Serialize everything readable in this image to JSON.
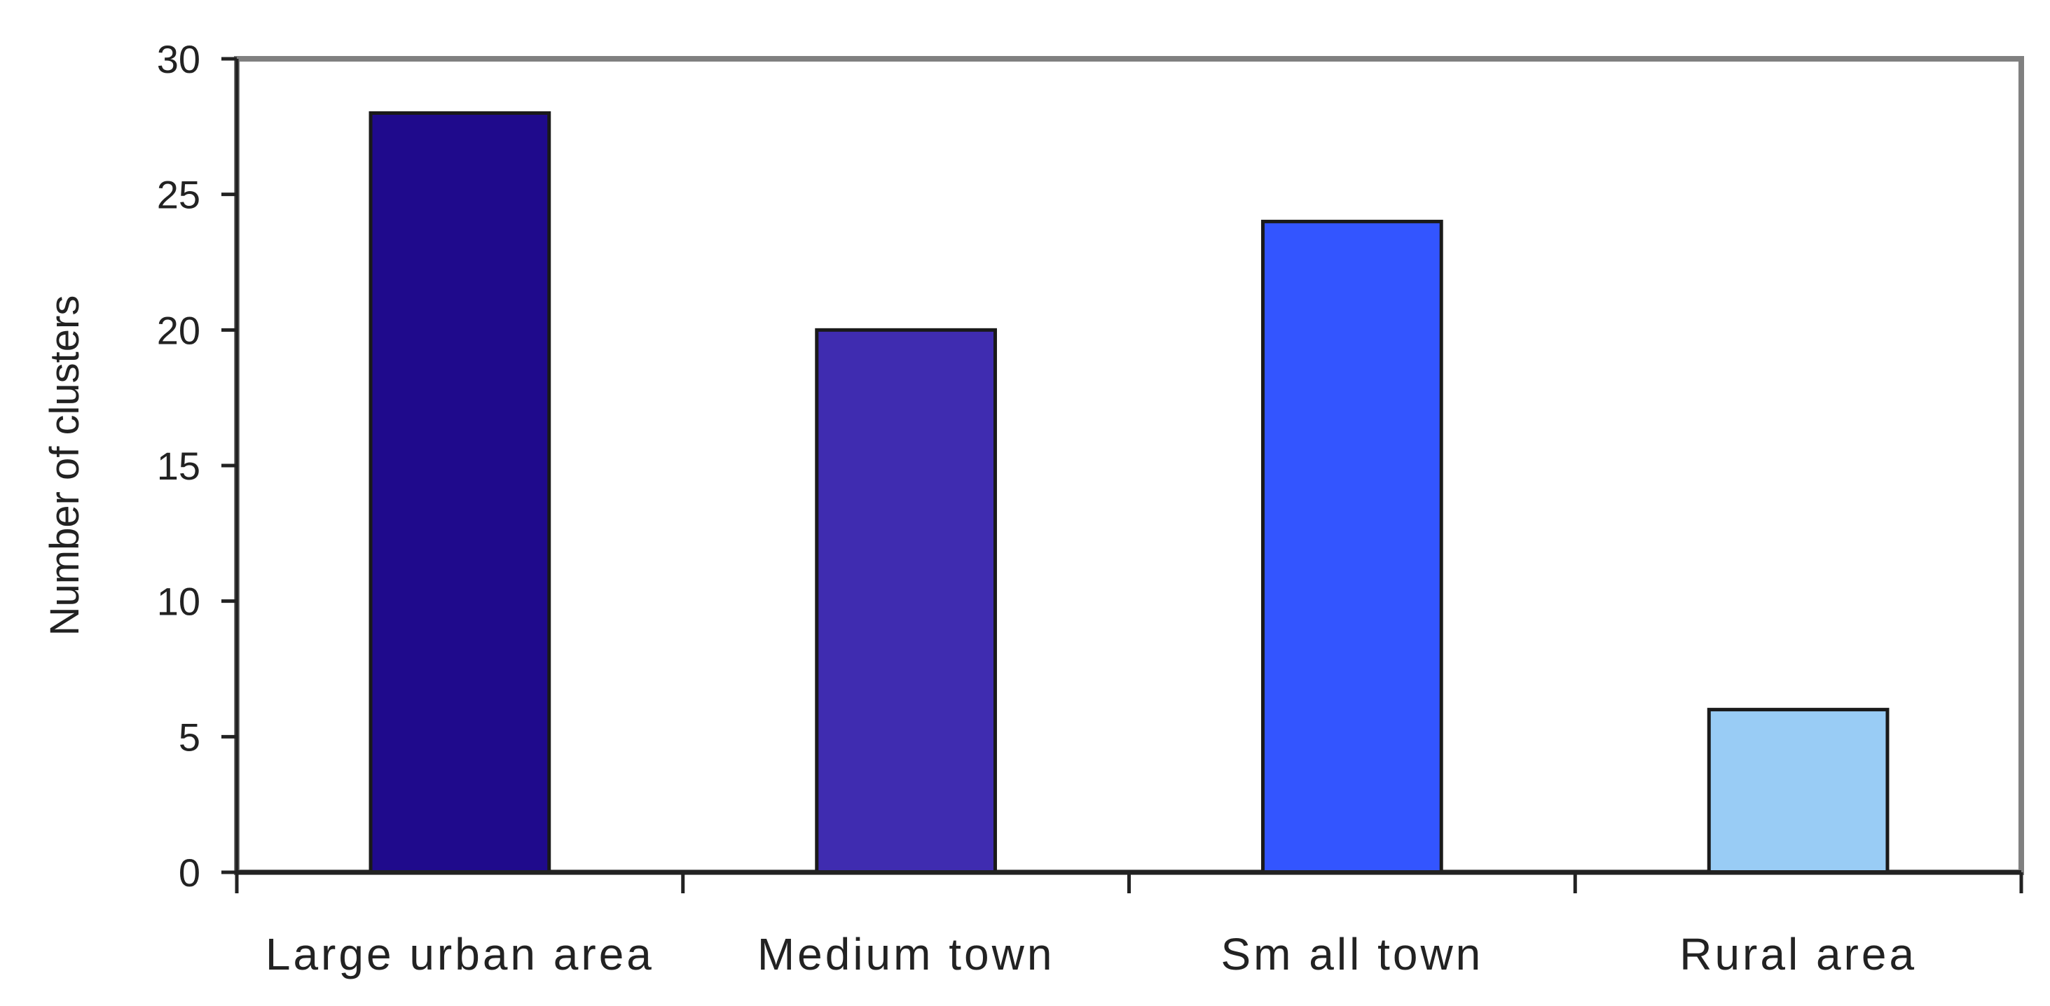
{
  "chart_data": {
    "type": "bar",
    "title": "",
    "xlabel": "",
    "ylabel": "Number of clusters",
    "categories": [
      "Large urban area",
      "Medium  town",
      "Sm all town",
      "Rural area"
    ],
    "values": [
      28,
      20,
      24,
      6
    ],
    "colors": [
      "#1f0a8c",
      "#3f2cb0",
      "#3355ff",
      "#99ccf5"
    ],
    "ylim": [
      0,
      30
    ],
    "yticks": [
      0,
      5,
      10,
      15,
      20,
      25,
      30
    ],
    "grid": false,
    "legend": "none"
  }
}
